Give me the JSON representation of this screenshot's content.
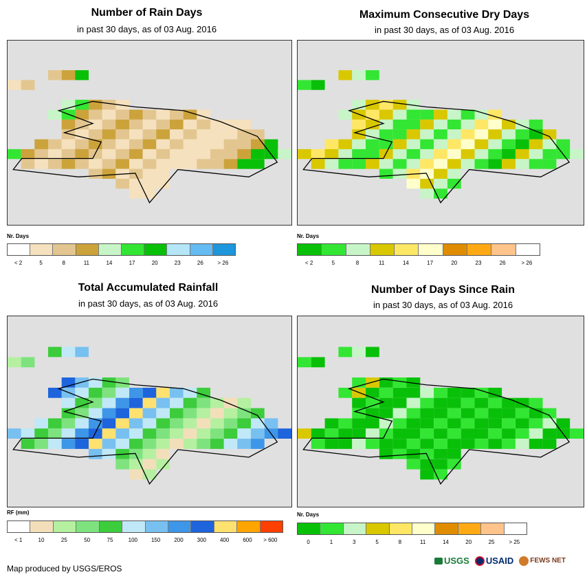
{
  "panels": [
    {
      "id": "rain-days",
      "title": "Number of Rain Days",
      "subtitle": "in past 30 days, as of 03 Aug. 2016",
      "legend_title": "Nr. Days",
      "legend_colors": [
        "#ffffff",
        "#f5e1bd",
        "#e3c68f",
        "#cca33b",
        "#c7f5c7",
        "#33e633",
        "#09c009",
        "#b5e6f7",
        "#64bcf2",
        "#1e96dc"
      ],
      "legend_labels": [
        "< 2",
        "5",
        "8",
        "11",
        "14",
        "17",
        "20",
        "23",
        "26",
        "> 26"
      ]
    },
    {
      "id": "max-dry-days",
      "title": "Maximum Consecutive Dry Days",
      "subtitle": "in past 30 days, as of 03 Aug. 2016",
      "legend_title": "Nr. Days",
      "legend_colors": [
        "#09c009",
        "#33e633",
        "#c7f5c7",
        "#d9c800",
        "#ffe766",
        "#ffffcc",
        "#e08c00",
        "#ffaa14",
        "#ffc38c",
        "#ffffff"
      ],
      "legend_labels": [
        "< 2",
        "5",
        "8",
        "11",
        "14",
        "17",
        "20",
        "23",
        "26",
        "> 26"
      ]
    },
    {
      "id": "total-rainfall",
      "title": "Total Accumulated Rainfall",
      "subtitle": "in past 30 days, as of 03 Aug. 2016",
      "legend_title": "RF (mm)",
      "legend_colors": [
        "#ffffff",
        "#f2dfba",
        "#b5f0a0",
        "#7ee37e",
        "#3ccc3c",
        "#c0e8f7",
        "#78c0f0",
        "#3e96e8",
        "#1e64dc",
        "#ffe170",
        "#ffa500",
        "#ff4000"
      ],
      "legend_labels": [
        "< 1",
        "10",
        "25",
        "50",
        "75",
        "100",
        "150",
        "200",
        "300",
        "400",
        "600",
        "> 600"
      ]
    },
    {
      "id": "days-since-rain",
      "title": "Number of Days Since Rain",
      "subtitle": "in past 30 days, as of 03 Aug. 2016",
      "legend_title": "Nr. Days",
      "legend_colors": [
        "#09c009",
        "#33e633",
        "#c7f5c7",
        "#d9c800",
        "#ffe766",
        "#ffffcc",
        "#e08c00",
        "#ffaa14",
        "#ffc38c",
        "#ffffff"
      ],
      "legend_labels": [
        "0",
        "1",
        "3",
        "5",
        "8",
        "11",
        "14",
        "20",
        "25",
        "> 25"
      ]
    }
  ],
  "footer": {
    "credit": "Map produced by USGS/EROS"
  },
  "logos": {
    "usgs": "USGS",
    "usaid": "USAID",
    "fewsnet": "FEWS NET"
  }
}
